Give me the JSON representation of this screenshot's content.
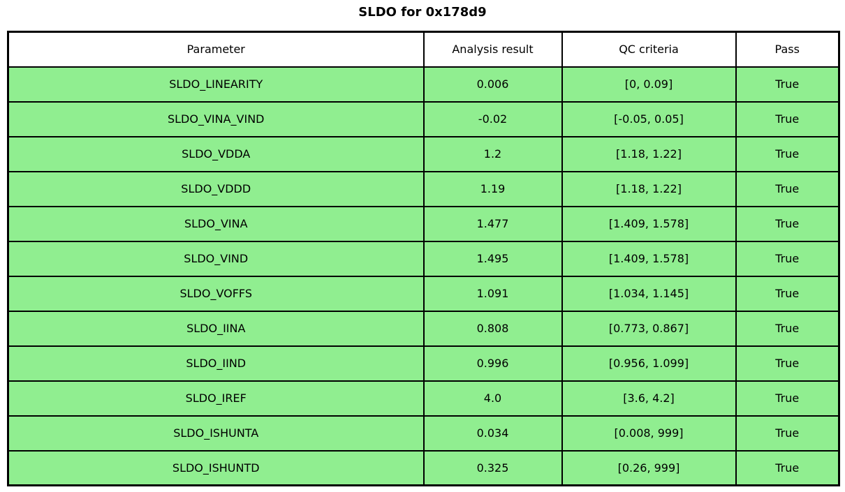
{
  "title": "SLDO for 0x178d9",
  "colors": {
    "pass_row_bg": "#90EE90",
    "header_bg": "#FFFFFF",
    "border": "#000000",
    "text": "#000000"
  },
  "table": {
    "headers": [
      "Parameter",
      "Analysis result",
      "QC criteria",
      "Pass"
    ],
    "rows": [
      {
        "cells": [
          "SLDO_LINEARITY",
          "0.006",
          "[0, 0.09]",
          "True"
        ]
      },
      {
        "cells": [
          "SLDO_VINA_VIND",
          "-0.02",
          "[-0.05, 0.05]",
          "True"
        ]
      },
      {
        "cells": [
          "SLDO_VDDA",
          "1.2",
          "[1.18, 1.22]",
          "True"
        ]
      },
      {
        "cells": [
          "SLDO_VDDD",
          "1.19",
          "[1.18, 1.22]",
          "True"
        ]
      },
      {
        "cells": [
          "SLDO_VINA",
          "1.477",
          "[1.409, 1.578]",
          "True"
        ]
      },
      {
        "cells": [
          "SLDO_VIND",
          "1.495",
          "[1.409, 1.578]",
          "True"
        ]
      },
      {
        "cells": [
          "SLDO_VOFFS",
          "1.091",
          "[1.034, 1.145]",
          "True"
        ]
      },
      {
        "cells": [
          "SLDO_IINA",
          "0.808",
          "[0.773, 0.867]",
          "True"
        ]
      },
      {
        "cells": [
          "SLDO_IIND",
          "0.996",
          "[0.956, 1.099]",
          "True"
        ]
      },
      {
        "cells": [
          "SLDO_IREF",
          "4.0",
          "[3.6, 4.2]",
          "True"
        ]
      },
      {
        "cells": [
          "SLDO_ISHUNTA",
          "0.034",
          "[0.008, 999]",
          "True"
        ]
      },
      {
        "cells": [
          "SLDO_ISHUNTD",
          "0.325",
          "[0.26, 999]",
          "True"
        ]
      }
    ]
  },
  "chart_data": {
    "type": "table",
    "title": "SLDO for 0x178d9",
    "columns": [
      "Parameter",
      "Analysis result",
      "QC criteria",
      "Pass"
    ],
    "rows": [
      [
        "SLDO_LINEARITY",
        0.006,
        "[0, 0.09]",
        true
      ],
      [
        "SLDO_VINA_VIND",
        -0.02,
        "[-0.05, 0.05]",
        true
      ],
      [
        "SLDO_VDDA",
        1.2,
        "[1.18, 1.22]",
        true
      ],
      [
        "SLDO_VDDD",
        1.19,
        "[1.18, 1.22]",
        true
      ],
      [
        "SLDO_VINA",
        1.477,
        "[1.409, 1.578]",
        true
      ],
      [
        "SLDO_VIND",
        1.495,
        "[1.409, 1.578]",
        true
      ],
      [
        "SLDO_VOFFS",
        1.091,
        "[1.034, 1.145]",
        true
      ],
      [
        "SLDO_IINA",
        0.808,
        "[0.773, 0.867]",
        true
      ],
      [
        "SLDO_IIND",
        0.996,
        "[0.956, 1.099]",
        true
      ],
      [
        "SLDO_IREF",
        4.0,
        "[3.6, 4.2]",
        true
      ],
      [
        "SLDO_ISHUNTA",
        0.034,
        "[0.008, 999]",
        true
      ],
      [
        "SLDO_ISHUNTD",
        0.325,
        "[0.26, 999]",
        true
      ]
    ],
    "row_status_color": "#90EE90",
    "layout": {
      "header_bg": "#FFFFFF",
      "grid": true,
      "cell_text_align": "center"
    }
  }
}
